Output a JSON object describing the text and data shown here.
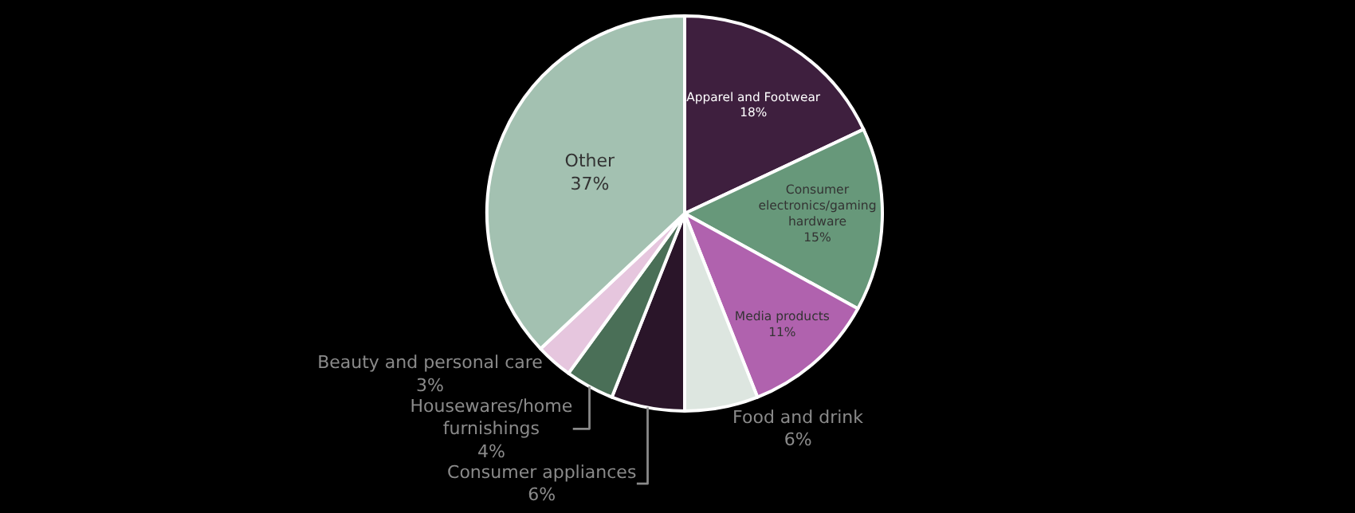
{
  "chart_data": {
    "type": "pie",
    "categories": [
      "Apparel and Footwear",
      "Consumer electronics/gaming hardware",
      "Media products",
      "Food and drink",
      "Consumer appliances",
      "Housewares/home furnishings",
      "Beauty and personal care",
      "Other"
    ],
    "values": [
      18,
      15,
      11,
      6,
      6,
      4,
      3,
      37
    ],
    "value_labels": [
      "18%",
      "15%",
      "11%",
      "6%",
      "6%",
      "4%",
      "3%",
      "37%"
    ],
    "colors": [
      "#3e1f3e",
      "#67987a",
      "#b062ae",
      "#dde6e0",
      "#2a1529",
      "#4a6f57",
      "#e6c6de",
      "#a3c1b1"
    ],
    "legend": false
  }
}
